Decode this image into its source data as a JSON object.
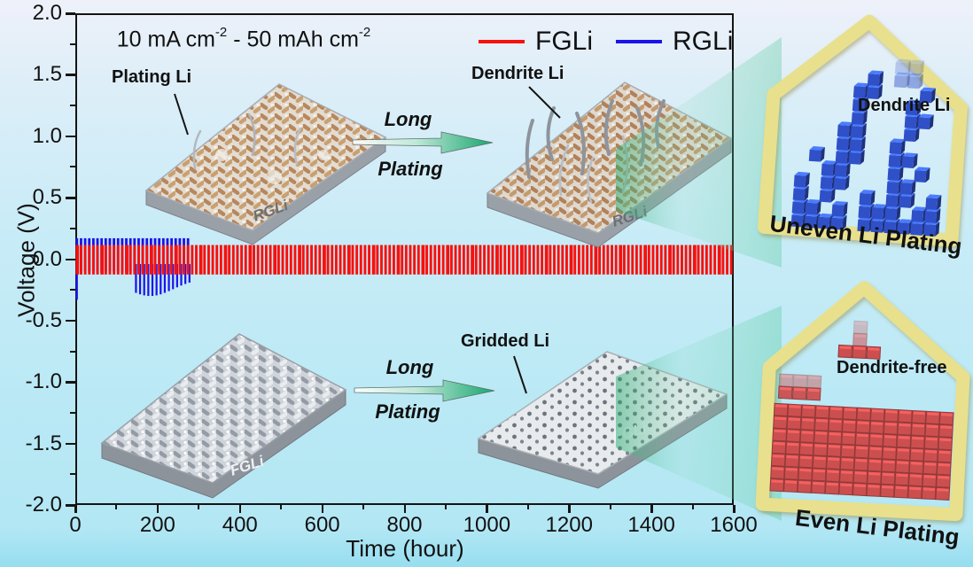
{
  "chart": {
    "y_axis": {
      "title": "Voltage (V)"
    },
    "x_axis": {
      "title": "Time (hour)"
    },
    "annotation": {
      "part1": "10 mA cm",
      "sup1": "-2",
      "part2": " - 50 mAh cm",
      "sup2": "-2"
    },
    "legend": [
      {
        "label": "FGLi",
        "color": "#f7100d"
      },
      {
        "label": "RGLi",
        "color": "#1a13ea"
      }
    ]
  },
  "insets": {
    "plating_label": "Plating Li",
    "dendrite_label": "Dendrite Li",
    "gridded_label": "Gridded Li",
    "arrow_top": {
      "line1": "Long",
      "line2": "Plating"
    },
    "arrow_bottom": {
      "line1": "Long",
      "line2": "Plating"
    },
    "plate_rgli": "RGLi",
    "plate_rgli_dendrite": "RGLi",
    "plate_fgli": "FGLi",
    "plate_fgli_gridded": "FGLi"
  },
  "panels": {
    "top": {
      "inner_label": "Dendrite Li",
      "caption": "Uneven Li Plating",
      "cube_color": "#3050c8",
      "frame_color": "#e8e08d"
    },
    "bottom": {
      "inner_label": "Dendrite-free",
      "caption": "Even Li Plating",
      "brick_color": "#cc4f4f",
      "frame_color": "#e8e08d"
    }
  },
  "chart_data": {
    "type": "line",
    "title": "",
    "annotation": "10 mA cm⁻² - 50 mAh cm⁻²",
    "xlabel": "Time (hour)",
    "ylabel": "Voltage (V)",
    "xlim": [
      0,
      1600
    ],
    "ylim": [
      -2.0,
      2.0
    ],
    "x_ticks": [
      0,
      200,
      400,
      600,
      800,
      1000,
      1200,
      1400,
      1600
    ],
    "x_tick_labels": [
      "0",
      "200",
      "400",
      "600",
      "800",
      "1000",
      "1200",
      "1400",
      "1600"
    ],
    "y_ticks": [
      2.0,
      1.5,
      1.0,
      0.5,
      0.0,
      -0.5,
      -1.0,
      -1.5,
      -2.0
    ],
    "y_tick_labels": [
      "2.0",
      "1.5",
      "1.0",
      "0.5",
      "0.0",
      "-0.5",
      "-1.0",
      "-1.5",
      "-2.0"
    ],
    "grid": false,
    "legend_position": "top-right inside",
    "series": [
      {
        "name": "FGLi",
        "color": "#f7100d",
        "description": "Stable symmetric-cell square-wave cycling over full test",
        "t_start": 0,
        "t_end": 1600,
        "cycle_hours": 10,
        "v_top": 0.115,
        "v_bottom": -0.125
      },
      {
        "name": "RGLi",
        "color": "#1a13ea",
        "description": "Cycling fails after ~280 h; dendrite-induced voltage dips from ~145 h, initial nucleation dip at t=0",
        "t_start": 0,
        "t_end": 280,
        "cycle_hours": 10,
        "v_top": 0.17,
        "v_bottom": -0.1,
        "initial_dip_v": -0.33,
        "failure": {
          "t_start": 145,
          "t_end": 280,
          "t_peak": 180,
          "v_peak": -0.3
        }
      }
    ]
  }
}
